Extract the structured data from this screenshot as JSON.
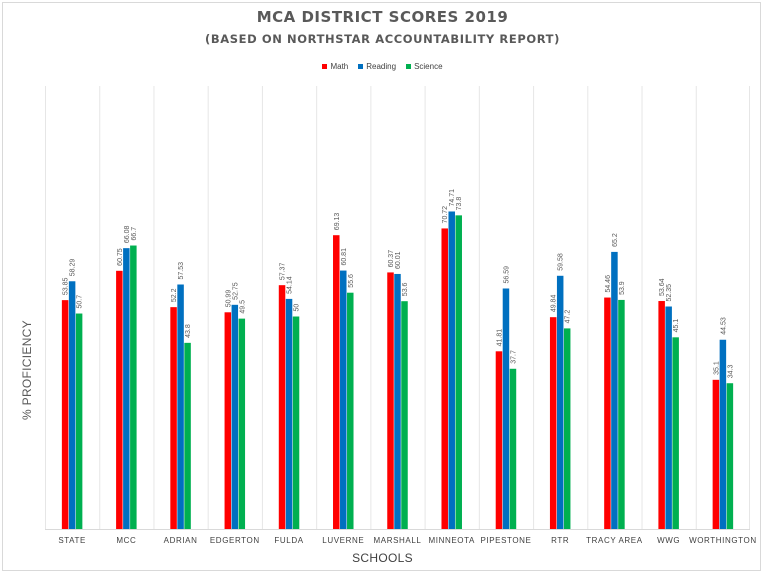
{
  "chart_data": {
    "type": "bar",
    "title": "MCA DISTRICT SCORES 2019",
    "subtitle": "(BASED ON NORTHSTAR ACCOUNTABILITY REPORT)",
    "xlabel": "SCHOOLS",
    "ylabel": "% PROFICIENCY",
    "categories": [
      "STATE",
      "MCC",
      "ADRIAN",
      "EDGERTON",
      "FULDA",
      "LUVERNE",
      "MARSHALL",
      "MINNEOTA",
      "PIPESTONE",
      "RTR",
      "TRACY AREA",
      "WWG",
      "WORTHINGTON"
    ],
    "series": [
      {
        "name": "Math",
        "color": "#ff0000",
        "values": [
          53.85,
          60.75,
          52.2,
          50.99,
          57.37,
          69.13,
          60.37,
          70.72,
          41.81,
          49.84,
          54.46,
          53.64,
          35.1
        ]
      },
      {
        "name": "Reading",
        "color": "#0070c0",
        "values": [
          58.29,
          66.08,
          57.53,
          52.75,
          54.14,
          60.81,
          60.01,
          74.71,
          56.59,
          59.58,
          65.2,
          52.35,
          44.53
        ]
      },
      {
        "name": "Science",
        "color": "#00b050",
        "values": [
          50.7,
          66.7,
          43.8,
          49.5,
          50,
          55.6,
          53.6,
          73.8,
          37.7,
          47.2,
          53.9,
          45.1,
          34.3
        ]
      }
    ],
    "ylim": [
      0,
      80
    ],
    "legend_position": "top",
    "grid": false
  }
}
